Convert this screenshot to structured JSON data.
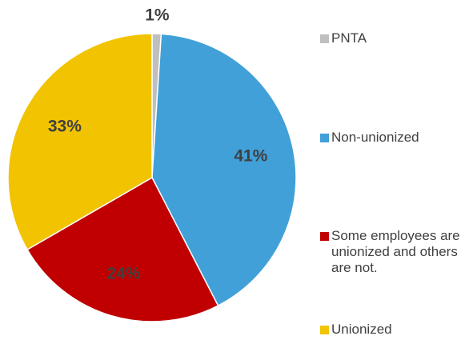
{
  "chart_data": {
    "type": "pie",
    "categories": [
      "PNTA",
      "Non-unionized",
      "Some employees are unionized and others are not.",
      "Unionized"
    ],
    "values": [
      1,
      41,
      24,
      33
    ],
    "value_labels": [
      "1%",
      "41%",
      "24%",
      "33%"
    ],
    "colors": [
      "#bfbfbf",
      "#41a0d8",
      "#c00000",
      "#f2c300"
    ],
    "legend": "right"
  }
}
